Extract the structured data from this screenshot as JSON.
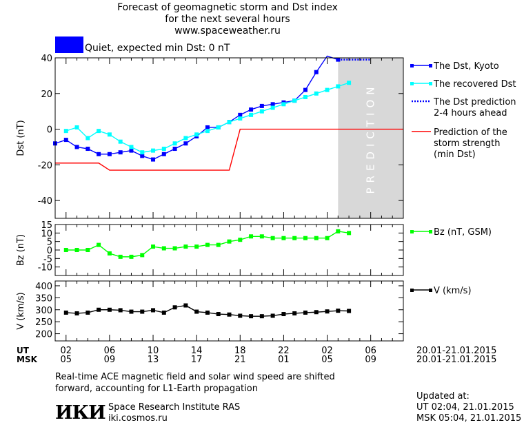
{
  "header": {
    "line1": "Forecast of geomagnetic storm and Dst index",
    "line2": "for the next several hours",
    "line3": "www.spaceweather.ru"
  },
  "status": {
    "text": "Quiet, expected min Dst: 0 nT",
    "color": "#0000ff"
  },
  "colors": {
    "dst": "#0000ff",
    "recovered": "#00ffff",
    "prediction": "#ff0000",
    "bz": "#00ff00",
    "v": "#000000",
    "prediction_band": "#d8d8d8"
  },
  "time_axis": {
    "ut_label": "UT",
    "msk_label": "MSK",
    "ut_ticks": [
      "02",
      "06",
      "10",
      "14",
      "18",
      "22",
      "02",
      "06"
    ],
    "msk_ticks": [
      "05",
      "09",
      "13",
      "17",
      "21",
      "01",
      "05",
      "09"
    ],
    "ut_range": "20.01-21.01.2015",
    "msk_range": "20.01-21.01.2015"
  },
  "footer": {
    "note_line1": "Real-time ACE magnetic field and solar wind speed are shifted",
    "note_line2": "forward, accounting for L1-Earth propagation",
    "logo": "ИКИ",
    "institute": "Space Research Institute RAS",
    "website": "iki.cosmos.ru",
    "updated_label": "Updated at:",
    "updated_ut": "UT   02:04, 21.01.2015",
    "updated_msk": "MSK 05:04, 21.01.2015"
  },
  "chart_data": [
    {
      "type": "line",
      "ylabel": "Dst (nT)",
      "ylim": [
        -50,
        40
      ],
      "yticks": [
        -40,
        -20,
        0,
        20,
        40
      ],
      "xlim": [
        1,
        33
      ],
      "band_label": "PREDICTION",
      "band_range": [
        27,
        33
      ],
      "series": [
        {
          "name": "The Dst, Kyoto",
          "color": "#0000ff",
          "marker": "square",
          "x": [
            1,
            2,
            3,
            4,
            5,
            6,
            7,
            8,
            9,
            10,
            11,
            12,
            13,
            14,
            15,
            16,
            17,
            18,
            19,
            20,
            21,
            22,
            23,
            24,
            25,
            26,
            27
          ],
          "y": [
            -8,
            -6,
            -10,
            -11,
            -14,
            -14,
            -13,
            -12,
            -15,
            -17,
            -14,
            -11,
            -8,
            -4,
            1,
            1,
            4,
            8,
            11,
            13,
            14,
            15,
            16,
            22,
            32,
            41,
            39
          ]
        },
        {
          "name": "The recovered Dst",
          "color": "#00ffff",
          "marker": "square",
          "x": [
            2,
            3,
            4,
            5,
            6,
            7,
            8,
            9,
            10,
            11,
            12,
            13,
            14,
            15,
            16,
            17,
            18,
            19,
            20,
            21,
            22,
            23,
            24,
            25,
            26,
            27,
            28
          ],
          "y": [
            -1,
            1,
            -5,
            -1,
            -3,
            -7,
            -10,
            -13,
            -12,
            -11,
            -8,
            -5,
            -3,
            -1,
            1,
            4,
            6,
            8,
            10,
            12,
            14,
            16,
            18,
            20,
            22,
            24,
            26
          ]
        },
        {
          "name": "The Dst prediction\n2-4 hours ahead",
          "color": "#0000ff",
          "style": "dotted",
          "x": [
            27,
            30
          ],
          "y": [
            39,
            39
          ]
        },
        {
          "name": "Prediction of the\nstorm strength\n(min Dst)",
          "color": "#ff0000",
          "x": [
            1,
            5,
            6,
            17,
            18,
            33
          ],
          "y": [
            -19,
            -19,
            -23,
            -23,
            0,
            0
          ]
        }
      ]
    },
    {
      "type": "line",
      "ylabel": "Bz (nT)",
      "ylim": [
        -15,
        15
      ],
      "yticks": [
        15,
        10,
        5,
        0,
        -5,
        -10
      ],
      "xlim": [
        1,
        33
      ],
      "series": [
        {
          "name": "Bz (nT, GSM)",
          "color": "#00ff00",
          "marker": "square",
          "x": [
            2,
            3,
            4,
            5,
            6,
            7,
            8,
            9,
            10,
            11,
            12,
            13,
            14,
            15,
            16,
            17,
            18,
            19,
            20,
            21,
            22,
            23,
            24,
            25,
            26,
            27,
            28
          ],
          "y": [
            0,
            0,
            0,
            3,
            -2,
            -4,
            -4,
            -3,
            2,
            1,
            1,
            2,
            2,
            3,
            3,
            5,
            6,
            8,
            8,
            7,
            7,
            7,
            7,
            7,
            7,
            11,
            10
          ]
        }
      ]
    },
    {
      "type": "line",
      "ylabel": "V (km/s)",
      "ylim": [
        170,
        420
      ],
      "yticks": [
        400,
        350,
        300,
        250,
        200
      ],
      "xlim": [
        1,
        33
      ],
      "series": [
        {
          "name": "V (km/s)",
          "color": "#000000",
          "marker": "square",
          "x": [
            2,
            3,
            4,
            5,
            6,
            7,
            8,
            9,
            10,
            11,
            12,
            13,
            14,
            15,
            16,
            17,
            18,
            19,
            20,
            21,
            22,
            23,
            24,
            25,
            26,
            27,
            28
          ],
          "y": [
            288,
            285,
            288,
            300,
            300,
            298,
            292,
            292,
            298,
            288,
            310,
            318,
            292,
            288,
            282,
            280,
            275,
            273,
            273,
            275,
            282,
            285,
            288,
            290,
            293,
            296,
            295
          ]
        }
      ]
    }
  ]
}
